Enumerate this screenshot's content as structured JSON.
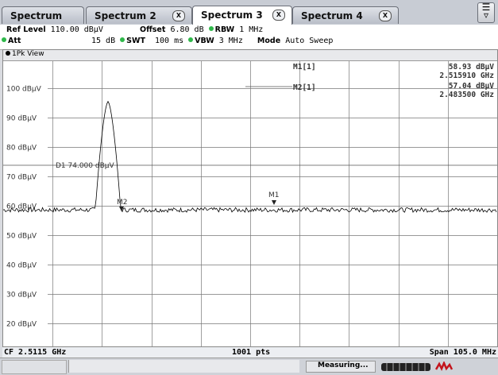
{
  "tabs": [
    {
      "label": "Spectrum",
      "closable": false
    },
    {
      "label": "Spectrum 2",
      "closable": true
    },
    {
      "label": "Spectrum 3",
      "closable": true,
      "active": true
    },
    {
      "label": "Spectrum 4",
      "closable": true
    }
  ],
  "tab_close_glyph": "X",
  "settings": {
    "ref_level_label": "Ref Level",
    "ref_level_value": "110.00 dBµV",
    "offset_label": "Offset",
    "offset_value": "6.80 dB",
    "rbw_label": "RBW",
    "rbw_value": "1 MHz",
    "att_label": "Att",
    "att_value": "15 dB",
    "swt_label": "SWT",
    "swt_value": "100 ms",
    "vbw_label": "VBW",
    "vbw_value": "3 MHz",
    "mode_label": "Mode",
    "mode_value": "Auto Sweep"
  },
  "view_title": "1Pk View",
  "y_ticks": [
    "100 dBµV",
    "90 dBµV",
    "80 dBµV",
    "70 dBµV",
    "60 dBµV",
    "50 dBµV",
    "40 dBµV",
    "30 dBµV",
    "20 dBµV"
  ],
  "display_line": "D1 74.000 dBµV",
  "markers": {
    "m1_label": "M1[1]",
    "m1_level": "58.93 dBµV",
    "m1_freq": "2.515910 GHz",
    "m2_label": "M2[1]",
    "m2_level": "57.04 dBµV",
    "m2_freq": "2.483500 GHz",
    "m1_trace": "M1",
    "m2_trace": "M2"
  },
  "footer": {
    "center_freq": "CF 2.5115 GHz",
    "points": "1001 pts",
    "span": "Span 105.0 MHz"
  },
  "status": "Measuring...",
  "colors": {
    "marker_dot": "#2fb84a",
    "trace": "#000000"
  }
}
